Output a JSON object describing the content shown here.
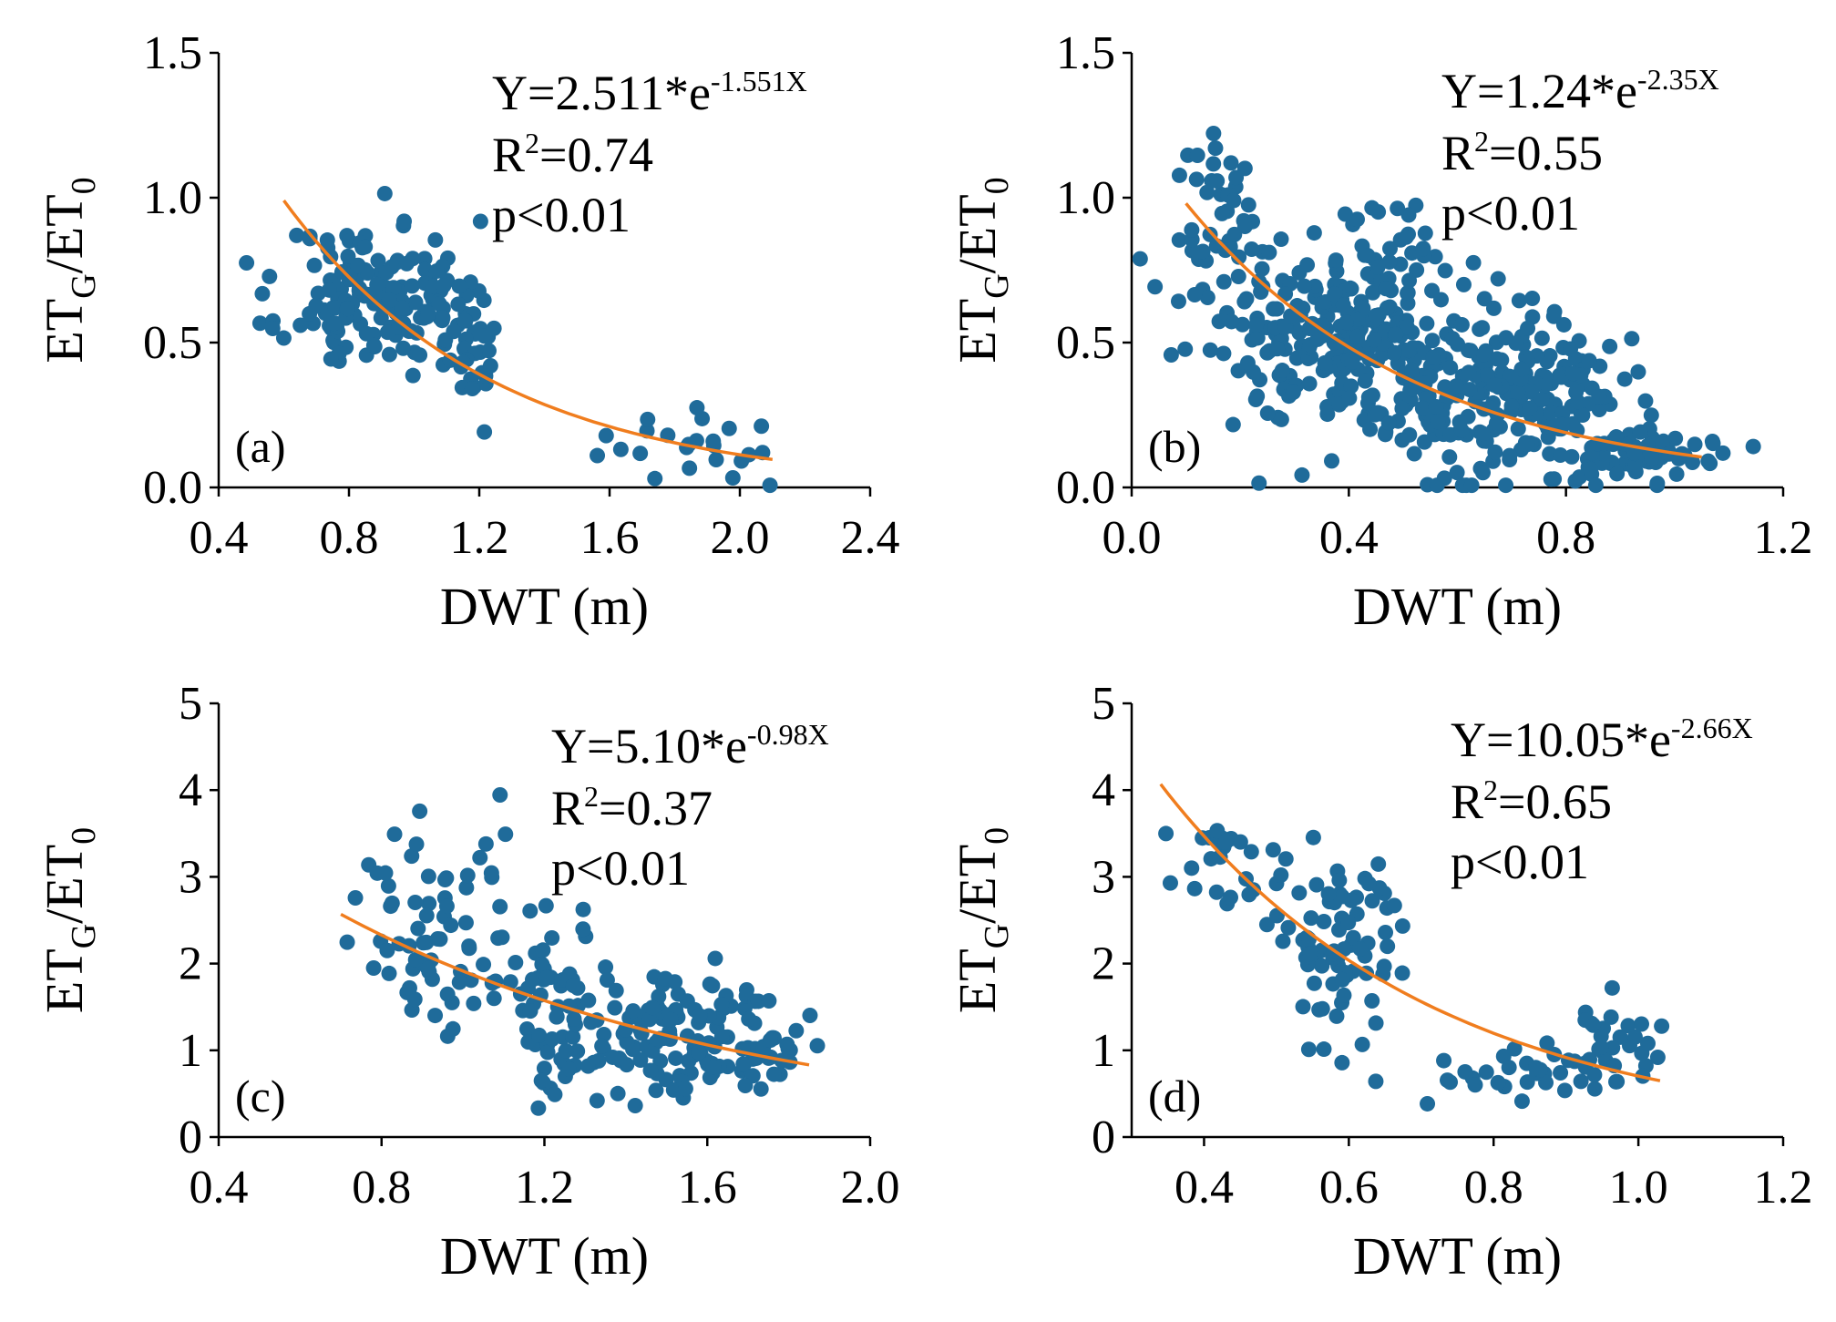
{
  "figure": {
    "description_free": true
  },
  "chart_data": [
    {
      "type": "scatter",
      "panel": "(a)",
      "xlabel": "DWT (m)",
      "ylabel_main": "ET",
      "ylabel_sub1": "G",
      "ylabel_mid": "/ET",
      "ylabel_sub2": "0",
      "xlim": [
        0.4,
        2.4
      ],
      "ylim": [
        0.0,
        1.5
      ],
      "xticks": [
        0.4,
        0.8,
        1.2,
        1.6,
        2.0,
        2.4
      ],
      "yticks": [
        0.0,
        0.5,
        1.0,
        1.5
      ],
      "tick_decimals": 1,
      "eq_prefix": "Y=2.511*e",
      "eq_exp": "-1.551X",
      "r2_prefix": "R",
      "r2_sup": "2",
      "r2_value": "=0.74",
      "p_text": "p<0.01",
      "fit": {
        "a": 2.511,
        "b": -1.551,
        "x_from": 0.6,
        "x_to": 2.1
      },
      "point_color": "#1f6b9a",
      "fit_color": "#f07d1e",
      "scatter_clusters": [
        {
          "cx": 0.88,
          "cy": 0.66,
          "sx": 0.14,
          "sy": 0.13,
          "n": 150,
          "seed": 11
        },
        {
          "cx": 1.17,
          "cy": 0.5,
          "sx": 0.07,
          "sy": 0.1,
          "n": 40,
          "seed": 12
        },
        {
          "cx": 1.85,
          "cy": 0.15,
          "sx": 0.16,
          "sy": 0.06,
          "n": 24,
          "seed": 13
        }
      ]
    },
    {
      "type": "scatter",
      "panel": "(b)",
      "xlabel": "DWT (m)",
      "ylabel_main": "ET",
      "ylabel_sub1": "G",
      "ylabel_mid": "/ET",
      "ylabel_sub2": "0",
      "xlim": [
        0.0,
        1.2
      ],
      "ylim": [
        0.0,
        1.5
      ],
      "xticks": [
        0.0,
        0.4,
        0.8,
        1.2
      ],
      "yticks": [
        0.0,
        0.5,
        1.0,
        1.5
      ],
      "tick_decimals": 1,
      "eq_prefix": "Y=1.24*e",
      "eq_exp": "-2.35X",
      "r2_prefix": "R",
      "r2_sup": "2",
      "r2_value": "=0.55",
      "p_text": "p<0.01",
      "fit": {
        "a": 1.24,
        "b": -2.35,
        "x_from": 0.1,
        "x_to": 1.05
      },
      "point_color": "#1f6b9a",
      "fit_color": "#f07d1e",
      "scatter_clusters": [
        {
          "cx": 0.17,
          "cy": 0.85,
          "sx": 0.05,
          "sy": 0.17,
          "n": 50,
          "seed": 21
        },
        {
          "cx": 0.4,
          "cy": 0.52,
          "sx": 0.11,
          "sy": 0.18,
          "n": 280,
          "seed": 22
        },
        {
          "cx": 0.68,
          "cy": 0.32,
          "sx": 0.11,
          "sy": 0.13,
          "n": 220,
          "seed": 23
        },
        {
          "cx": 0.93,
          "cy": 0.1,
          "sx": 0.07,
          "sy": 0.05,
          "n": 70,
          "seed": 24
        }
      ]
    },
    {
      "type": "scatter",
      "panel": "(c)",
      "xlabel": "DWT (m)",
      "ylabel_main": "ET",
      "ylabel_sub1": "G",
      "ylabel_mid": "/ET",
      "ylabel_sub2": "0",
      "xlim": [
        0.4,
        2.0
      ],
      "ylim": [
        0,
        5
      ],
      "xticks": [
        0.4,
        0.8,
        1.2,
        1.6,
        2.0
      ],
      "yticks": [
        0,
        1,
        2,
        3,
        4,
        5
      ],
      "tick_decimals_x": 1,
      "tick_decimals_y": 0,
      "eq_prefix": "Y=5.10*e",
      "eq_exp": "-0.98X",
      "r2_prefix": "R",
      "r2_sup": "2",
      "r2_value": "=0.37",
      "p_text": "p<0.01",
      "fit": {
        "a": 5.1,
        "b": -0.98,
        "x_from": 0.7,
        "x_to": 1.85
      },
      "point_color": "#1f6b9a",
      "fit_color": "#f07d1e",
      "scatter_clusters": [
        {
          "cx": 0.93,
          "cy": 2.35,
          "sx": 0.1,
          "sy": 0.65,
          "n": 70,
          "seed": 31
        },
        {
          "cx": 1.22,
          "cy": 1.55,
          "sx": 0.07,
          "sy": 0.55,
          "n": 60,
          "seed": 32
        },
        {
          "cx": 1.5,
          "cy": 1.15,
          "sx": 0.1,
          "sy": 0.35,
          "n": 110,
          "seed": 33
        },
        {
          "cx": 1.75,
          "cy": 1.05,
          "sx": 0.05,
          "sy": 0.3,
          "n": 30,
          "seed": 34
        }
      ]
    },
    {
      "type": "scatter",
      "panel": "(d)",
      "xlabel": "DWT (m)",
      "ylabel_main": "ET",
      "ylabel_sub1": "G",
      "ylabel_mid": "/ET",
      "ylabel_sub2": "0",
      "xlim": [
        0.3,
        1.2
      ],
      "ylim": [
        0,
        5
      ],
      "xticks": [
        0.4,
        0.6,
        0.8,
        1.0,
        1.2
      ],
      "yticks": [
        0,
        1,
        2,
        3,
        4,
        5
      ],
      "tick_decimals_x": 1,
      "tick_decimals_y": 0,
      "eq_prefix": "Y=10.05*e",
      "eq_exp": "-2.66X",
      "r2_prefix": "R",
      "r2_sup": "2",
      "r2_value": "=0.65",
      "p_text": "p<0.01",
      "fit": {
        "a": 10.05,
        "b": -2.66,
        "x_from": 0.34,
        "x_to": 1.03
      },
      "point_color": "#1f6b9a",
      "fit_color": "#f07d1e",
      "scatter_clusters": [
        {
          "cx": 0.43,
          "cy": 3.15,
          "sx": 0.05,
          "sy": 0.3,
          "n": 25,
          "seed": 41
        },
        {
          "cx": 0.58,
          "cy": 2.25,
          "sx": 0.05,
          "sy": 0.6,
          "n": 80,
          "seed": 42
        },
        {
          "cx": 0.82,
          "cy": 0.75,
          "sx": 0.07,
          "sy": 0.2,
          "n": 30,
          "seed": 43
        },
        {
          "cx": 0.96,
          "cy": 1.0,
          "sx": 0.04,
          "sy": 0.3,
          "n": 30,
          "seed": 44
        }
      ]
    }
  ]
}
